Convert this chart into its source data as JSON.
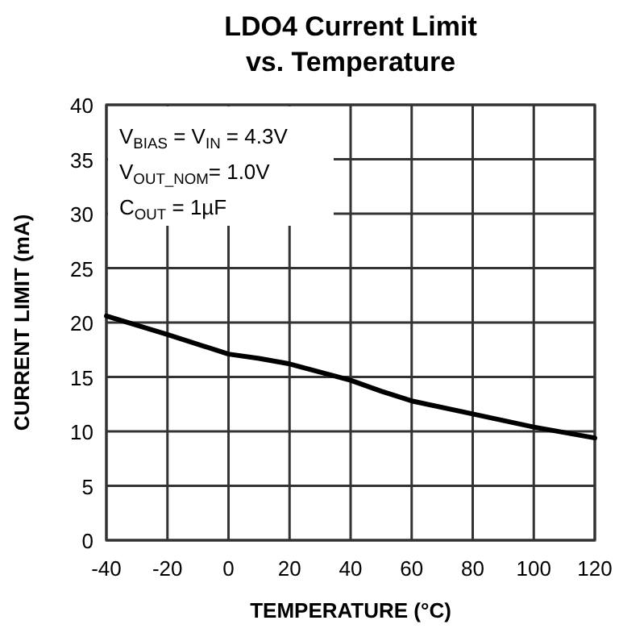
{
  "chart_data": {
    "type": "line",
    "title": "LDO4 Current Limit\nvs. Temperature",
    "xlabel": "TEMPERATURE (°C)",
    "ylabel": "CURRENT LIMIT (mA)",
    "x": [
      -40,
      -20,
      0,
      10,
      20,
      40,
      50,
      60,
      80,
      100,
      120
    ],
    "series": [
      {
        "color": "#000000",
        "values": [
          20.6,
          18.9,
          17.1,
          16.7,
          16.2,
          14.7,
          13.7,
          12.8,
          11.6,
          10.4,
          9.4
        ]
      }
    ],
    "xlim": [
      -40,
      120
    ],
    "xticks": [
      -40,
      -20,
      0,
      20,
      40,
      60,
      80,
      100,
      120
    ],
    "ylim": [
      0,
      40
    ],
    "yticks": [
      0,
      5,
      10,
      15,
      20,
      25,
      30,
      35,
      40
    ],
    "grid": true,
    "marker": "none",
    "line_style": "solid",
    "annotations": [
      "V$_{BIAS}$ = V$_{IN}$ = 4.3V",
      "V$_{OUT_NOM}$= 1.0V",
      "C$_{OUT}$ = 1µF"
    ]
  }
}
